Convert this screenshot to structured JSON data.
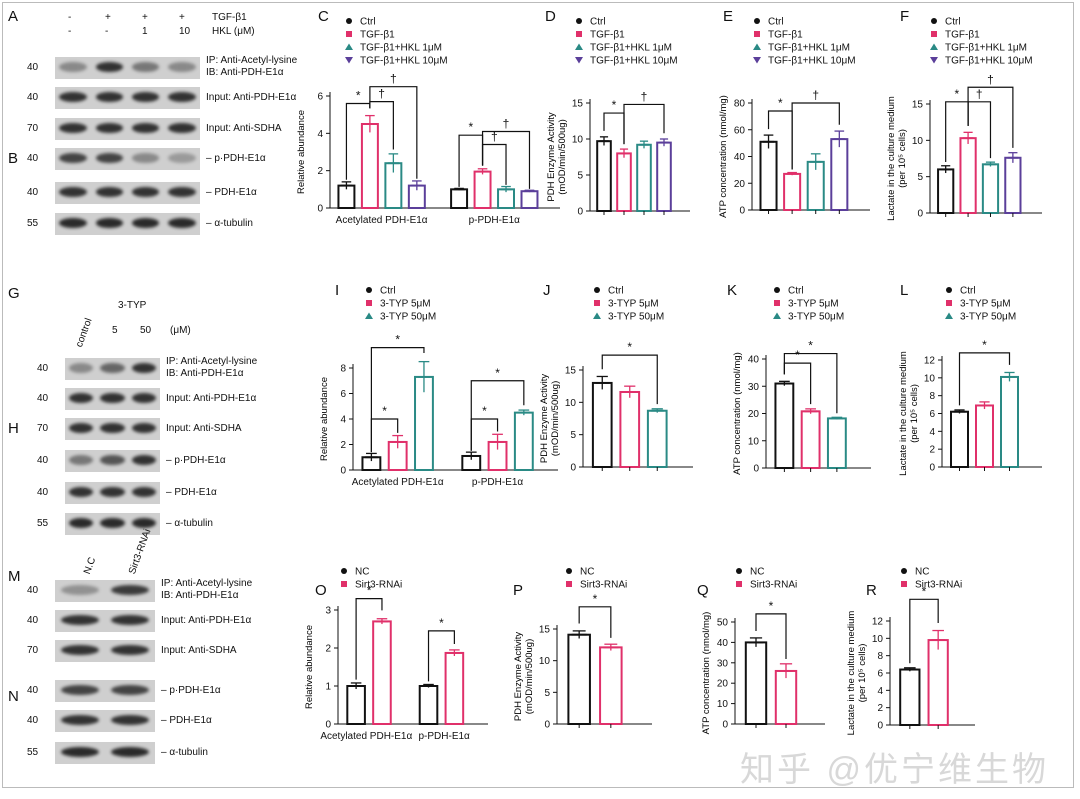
{
  "panels": {
    "A": "A",
    "B": "B",
    "C": "C",
    "D": "D",
    "E": "E",
    "F": "F",
    "G": "G",
    "H": "H",
    "I": "I",
    "J": "J",
    "K": "K",
    "L": "L",
    "M": "M",
    "N": "N",
    "O": "O",
    "P": "P",
    "Q": "Q",
    "R": "R"
  },
  "blotA": {
    "tgf_label": "TGF-β1",
    "hkl_label": "HKL (μM)",
    "tgf": [
      "-",
      "+",
      "+",
      "+"
    ],
    "hkl": [
      "-",
      "-",
      "1",
      "10"
    ],
    "rows": [
      {
        "mw": "40",
        "label": "IP: Anti-Acetyl-lysine\nIB: Anti-PDH-E1α"
      },
      {
        "mw": "40",
        "label": "Input: Anti-PDH-E1α"
      },
      {
        "mw": "70",
        "label": "Input: Anti-SDHA"
      },
      {
        "mw": "40",
        "label": "– p·PDH-E1α"
      },
      {
        "mw": "40",
        "label": "– PDH-E1α"
      },
      {
        "mw": "55",
        "label": "– α-tubulin"
      }
    ]
  },
  "blotG": {
    "lanes": [
      "control",
      "5",
      "50"
    ],
    "group": "3-TYP",
    "unit": "(μM)",
    "rows": [
      {
        "mw": "40",
        "label": "IP: Anti-Acetyl-lysine\nIB: Anti-PDH-E1α"
      },
      {
        "mw": "40",
        "label": "Input: Anti-PDH-E1α"
      },
      {
        "mw": "70",
        "label": "Input: Anti-SDHA"
      },
      {
        "mw": "40",
        "label": "– p·PDH-E1α"
      },
      {
        "mw": "40",
        "label": "– PDH-E1α"
      },
      {
        "mw": "55",
        "label": "– α-tubulin"
      }
    ]
  },
  "blotM": {
    "lanes": [
      "N.C",
      "Sirt3-RNAi"
    ],
    "rows": [
      {
        "mw": "40",
        "label": "IP: Anti-Acetyl-lysine\nIB: Anti-PDH-E1α"
      },
      {
        "mw": "40",
        "label": "Input: Anti-PDH-E1α"
      },
      {
        "mw": "70",
        "label": "Input: Anti-SDHA"
      },
      {
        "mw": "40",
        "label": "– p·PDH-E1α"
      },
      {
        "mw": "40",
        "label": "– PDH-E1α"
      },
      {
        "mw": "55",
        "label": "– α-tubulin"
      }
    ]
  },
  "watermark": "知乎 @优宁维生物",
  "chart_data": [
    {
      "id": "C",
      "type": "bar",
      "ylabel": "Relative abundance",
      "ylim": [
        0,
        6
      ],
      "ticks": [
        0,
        2,
        4,
        6
      ],
      "groups": [
        "Acetylated PDH-E1α",
        "p-PDH-E1α"
      ],
      "series": [
        {
          "name": "Ctrl",
          "color": "#111111",
          "values": [
            1.2,
            1.0
          ],
          "err": [
            0.2,
            0.05
          ]
        },
        {
          "name": "TGF-β1",
          "color": "#e0306a",
          "values": [
            4.5,
            1.95
          ],
          "err": [
            0.45,
            0.15
          ]
        },
        {
          "name": "TGF-β1+HKL 1μM",
          "color": "#2a8a85",
          "values": [
            2.4,
            1.0
          ],
          "err": [
            0.5,
            0.15
          ]
        },
        {
          "name": "TGF-β1+HKL 10μM",
          "color": "#5b3f9a",
          "values": [
            1.2,
            0.9
          ],
          "err": [
            0.25,
            0.05
          ]
        }
      ],
      "brackets": [
        [
          0,
          1,
          5.6,
          "*"
        ],
        [
          1,
          2,
          5.7,
          "†"
        ],
        [
          1,
          3,
          6.5,
          "†"
        ],
        [
          4,
          5,
          3.9,
          "*"
        ],
        [
          5,
          6,
          3.4,
          "†"
        ],
        [
          5,
          7,
          4.1,
          "†"
        ]
      ]
    },
    {
      "id": "D",
      "type": "bar",
      "ylabel": "PDH Enzyme Activity\n(mOD/min/500ug)",
      "ylim": [
        0,
        15
      ],
      "ticks": [
        0,
        5,
        10,
        15
      ],
      "groups": [
        ""
      ],
      "series": [
        {
          "name": "Ctrl",
          "color": "#111111",
          "values": [
            9.7
          ],
          "err": [
            0.6
          ]
        },
        {
          "name": "TGF-β1",
          "color": "#e0306a",
          "values": [
            8.0
          ],
          "err": [
            0.6
          ]
        },
        {
          "name": "TGF-β1+HKL 1μM",
          "color": "#2a8a85",
          "values": [
            9.2
          ],
          "err": [
            0.5
          ]
        },
        {
          "name": "TGF-β1+HKL 10μM",
          "color": "#5b3f9a",
          "values": [
            9.5
          ],
          "err": [
            0.5
          ]
        }
      ],
      "brackets": [
        [
          0,
          1,
          13.6,
          "*"
        ],
        [
          1,
          3,
          14.8,
          "†"
        ]
      ]
    },
    {
      "id": "E",
      "type": "bar",
      "ylabel": "ATP concentration (nmol/mg)",
      "ylim": [
        0,
        80
      ],
      "ticks": [
        0,
        20,
        40,
        60,
        80
      ],
      "groups": [
        ""
      ],
      "series": [
        {
          "name": "Ctrl",
          "color": "#111111",
          "values": [
            51
          ],
          "err": [
            5
          ]
        },
        {
          "name": "TGF-β1",
          "color": "#e0306a",
          "values": [
            27
          ],
          "err": [
            1
          ]
        },
        {
          "name": "TGF-β1+HKL 1μM",
          "color": "#2a8a85",
          "values": [
            36
          ],
          "err": [
            6
          ]
        },
        {
          "name": "TGF-β1+HKL 10μM",
          "color": "#5b3f9a",
          "values": [
            53
          ],
          "err": [
            6
          ]
        }
      ],
      "brackets": [
        [
          0,
          1,
          74,
          "*"
        ],
        [
          1,
          3,
          80,
          "†"
        ]
      ]
    },
    {
      "id": "F",
      "type": "bar",
      "ylabel": "Lactate in the culture medium\n(per 10⁵ cells)",
      "ylim": [
        0,
        15
      ],
      "ticks": [
        0,
        5,
        10,
        15
      ],
      "groups": [
        ""
      ],
      "series": [
        {
          "name": "Ctrl",
          "color": "#111111",
          "values": [
            6.0
          ],
          "err": [
            0.5
          ]
        },
        {
          "name": "TGF-β1",
          "color": "#e0306a",
          "values": [
            10.3
          ],
          "err": [
            0.8
          ]
        },
        {
          "name": "TGF-β1+HKL 1μM",
          "color": "#2a8a85",
          "values": [
            6.7
          ],
          "err": [
            0.3
          ]
        },
        {
          "name": "TGF-β1+HKL 10μM",
          "color": "#5b3f9a",
          "values": [
            7.6
          ],
          "err": [
            0.7
          ]
        }
      ],
      "brackets": [
        [
          0,
          1,
          15.3,
          "*"
        ],
        [
          1,
          2,
          15.3,
          "†"
        ],
        [
          1,
          3,
          17.3,
          "†"
        ]
      ]
    },
    {
      "id": "I",
      "type": "bar",
      "ylabel": "Relative abundance",
      "ylim": [
        0,
        8
      ],
      "ticks": [
        0,
        2,
        4,
        6,
        8
      ],
      "groups": [
        "Acetylated PDH-E1α",
        "p-PDH-E1α"
      ],
      "series": [
        {
          "name": "Ctrl",
          "color": "#111111",
          "values": [
            1.0,
            1.1
          ],
          "err": [
            0.3,
            0.3
          ]
        },
        {
          "name": "3-TYP 5μM",
          "color": "#e0306a",
          "values": [
            2.2,
            2.2
          ],
          "err": [
            0.5,
            0.6
          ]
        },
        {
          "name": "3-TYP 50μM",
          "color": "#2a8a85",
          "values": [
            7.3,
            4.5
          ],
          "err": [
            1.2,
            0.2
          ]
        }
      ],
      "brackets": [
        [
          0,
          1,
          4.0,
          "*"
        ],
        [
          0,
          2,
          9.6,
          "*"
        ],
        [
          3,
          4,
          4.0,
          "*"
        ],
        [
          3,
          5,
          7.0,
          "*"
        ]
      ]
    },
    {
      "id": "J",
      "type": "bar",
      "ylabel": "PDH Enzyme Activity\n(mOD/min/500ug)",
      "ylim": [
        0,
        15
      ],
      "ticks": [
        0,
        5,
        10,
        15
      ],
      "groups": [
        ""
      ],
      "series": [
        {
          "name": "Ctrl",
          "color": "#111111",
          "values": [
            13.0
          ],
          "err": [
            1.0
          ]
        },
        {
          "name": "3-TYP 5μM",
          "color": "#e0306a",
          "values": [
            11.6
          ],
          "err": [
            0.9
          ]
        },
        {
          "name": "3-TYP 50μM",
          "color": "#2a8a85",
          "values": [
            8.7
          ],
          "err": [
            0.3
          ]
        }
      ],
      "brackets": [
        [
          0,
          2,
          17.3,
          "*"
        ]
      ]
    },
    {
      "id": "K",
      "type": "bar",
      "ylabel": "ATP concentration (nmol/mg)",
      "ylim": [
        0,
        40
      ],
      "ticks": [
        0,
        10,
        20,
        30,
        40
      ],
      "groups": [
        ""
      ],
      "series": [
        {
          "name": "Ctrl",
          "color": "#111111",
          "values": [
            31
          ],
          "err": [
            0.8
          ]
        },
        {
          "name": "3-TYP 5μM",
          "color": "#e0306a",
          "values": [
            20.8
          ],
          "err": [
            0.9
          ]
        },
        {
          "name": "3-TYP 50μM",
          "color": "#2a8a85",
          "values": [
            18.2
          ],
          "err": [
            0.4
          ]
        }
      ],
      "brackets": [
        [
          0,
          1,
          38.5,
          "*"
        ],
        [
          0,
          2,
          42,
          "*"
        ]
      ]
    },
    {
      "id": "L",
      "type": "bar",
      "ylabel": "Lactate in the culture medium\n(per 10⁵ cells)",
      "ylim": [
        0,
        12
      ],
      "ticks": [
        0,
        2,
        4,
        6,
        8,
        10,
        12
      ],
      "groups": [
        ""
      ],
      "series": [
        {
          "name": "Ctrl",
          "color": "#111111",
          "values": [
            6.2
          ],
          "err": [
            0.2
          ]
        },
        {
          "name": "3-TYP 5μM",
          "color": "#e0306a",
          "values": [
            6.9
          ],
          "err": [
            0.4
          ]
        },
        {
          "name": "3-TYP 50μM",
          "color": "#2a8a85",
          "values": [
            10.1
          ],
          "err": [
            0.5
          ]
        }
      ],
      "brackets": [
        [
          0,
          2,
          12.8,
          "*"
        ]
      ]
    },
    {
      "id": "O",
      "type": "bar",
      "ylabel": "Relative abundance",
      "ylim": [
        0,
        3
      ],
      "ticks": [
        0,
        1,
        2,
        3
      ],
      "groups": [
        "Acetylated PDH-E1α",
        "p-PDH-E1α"
      ],
      "series": [
        {
          "name": "NC",
          "color": "#111111",
          "values": [
            1.0,
            1.0
          ],
          "err": [
            0.08,
            0.04
          ]
        },
        {
          "name": "Sirt3-RNAi",
          "color": "#e0306a",
          "values": [
            2.7,
            1.87
          ],
          "err": [
            0.07,
            0.08
          ]
        }
      ],
      "brackets": [
        [
          0,
          1,
          3.3,
          "*"
        ],
        [
          2,
          3,
          2.45,
          "*"
        ]
      ]
    },
    {
      "id": "P",
      "type": "bar",
      "ylabel": "PDH Enzyme Activity\n(mOD/min/500ug)",
      "ylim": [
        0,
        15
      ],
      "ticks": [
        0,
        5,
        10,
        15
      ],
      "groups": [
        ""
      ],
      "series": [
        {
          "name": "NC",
          "color": "#111111",
          "values": [
            14.1
          ],
          "err": [
            0.6
          ]
        },
        {
          "name": "Sirt3-RNAi",
          "color": "#e0306a",
          "values": [
            12.1
          ],
          "err": [
            0.5
          ]
        }
      ],
      "brackets": [
        [
          0,
          1,
          18.5,
          "*"
        ]
      ]
    },
    {
      "id": "Q",
      "type": "bar",
      "ylabel": "ATP concentration (nmol/mg)",
      "ylim": [
        0,
        50
      ],
      "ticks": [
        0,
        10,
        20,
        30,
        40,
        50
      ],
      "groups": [
        ""
      ],
      "series": [
        {
          "name": "NC",
          "color": "#111111",
          "values": [
            40
          ],
          "err": [
            2.2
          ]
        },
        {
          "name": "Sirt3-RNAi",
          "color": "#e0306a",
          "values": [
            26
          ],
          "err": [
            3.5
          ]
        }
      ],
      "brackets": [
        [
          0,
          1,
          54,
          "*"
        ]
      ]
    },
    {
      "id": "R",
      "type": "bar",
      "ylabel": "Lactate in the culture medium\n(per 10⁵ cells)",
      "ylim": [
        0,
        12
      ],
      "ticks": [
        0,
        2,
        4,
        6,
        8,
        10,
        12
      ],
      "groups": [
        ""
      ],
      "series": [
        {
          "name": "NC",
          "color": "#111111",
          "values": [
            6.4
          ],
          "err": [
            0.2
          ]
        },
        {
          "name": "Sirt3-RNAi",
          "color": "#e0306a",
          "values": [
            9.8
          ],
          "err": [
            1.1
          ]
        }
      ],
      "brackets": [
        [
          0,
          1,
          14.5,
          "*"
        ]
      ]
    }
  ]
}
